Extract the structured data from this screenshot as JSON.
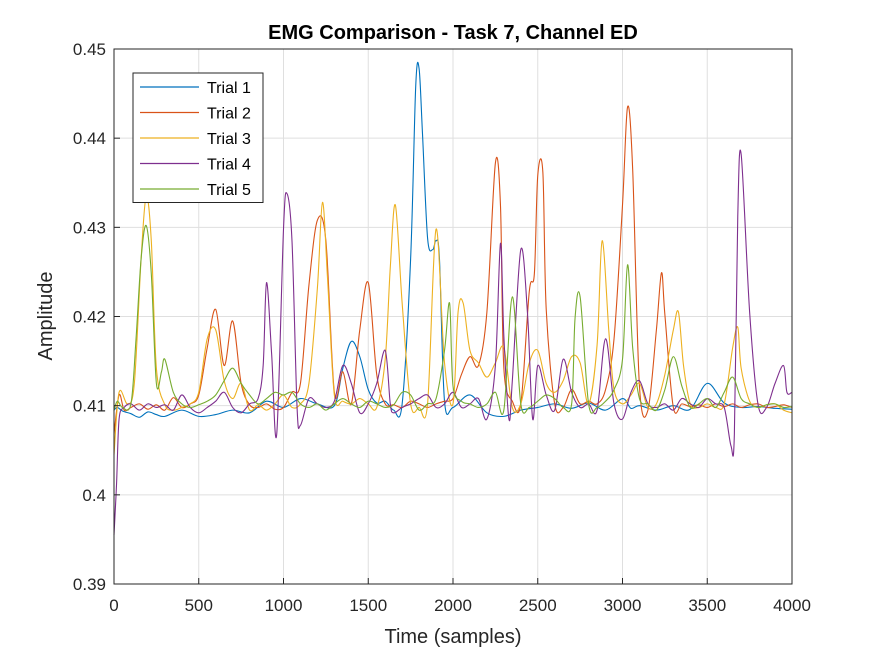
{
  "chart_data": {
    "type": "line",
    "title": "EMG Comparison - Task 7, Channel ED",
    "xlabel": "Time (samples)",
    "ylabel": "Amplitude",
    "xlim": [
      0,
      4000
    ],
    "ylim": [
      0.39,
      0.45
    ],
    "xticks": [
      0,
      500,
      1000,
      1500,
      2000,
      2500,
      3000,
      3500,
      4000
    ],
    "xtick_labels": [
      "0",
      "500",
      "1000",
      "1500",
      "2000",
      "2500",
      "3000",
      "3500",
      "4000"
    ],
    "yticks": [
      0.39,
      0.4,
      0.41,
      0.42,
      0.43,
      0.44,
      0.45
    ],
    "ytick_labels": [
      "0.39",
      "0.4",
      "0.41",
      "0.42",
      "0.43",
      "0.44",
      "0.45"
    ],
    "grid": true,
    "legend_position": "top-left",
    "series": [
      {
        "name": "Trial 1",
        "color": "#0072BD",
        "x": [
          0,
          20,
          50,
          100,
          150,
          200,
          250,
          300,
          400,
          500,
          600,
          700,
          800,
          900,
          1000,
          1100,
          1200,
          1300,
          1350,
          1400,
          1450,
          1500,
          1550,
          1600,
          1650,
          1700,
          1750,
          1780,
          1800,
          1820,
          1850,
          1880,
          1900,
          1920,
          1950,
          2000,
          2100,
          2200,
          2300,
          2400,
          2500,
          2600,
          2700,
          2800,
          2900,
          3000,
          3050,
          3100,
          3200,
          3300,
          3400,
          3500,
          3600,
          3700,
          3800,
          3900,
          4000
        ],
        "y": [
          0.4095,
          0.4098,
          0.4094,
          0.4091,
          0.4087,
          0.4093,
          0.409,
          0.4088,
          0.4095,
          0.4088,
          0.409,
          0.4095,
          0.4092,
          0.4105,
          0.4098,
          0.4108,
          0.4102,
          0.41,
          0.4142,
          0.4172,
          0.4155,
          0.4118,
          0.4103,
          0.4105,
          0.4095,
          0.4102,
          0.4265,
          0.4458,
          0.4478,
          0.4405,
          0.4288,
          0.4275,
          0.4285,
          0.4265,
          0.4105,
          0.4098,
          0.4112,
          0.4092,
          0.4088,
          0.4095,
          0.4098,
          0.4102,
          0.4097,
          0.4103,
          0.4095,
          0.4108,
          0.4097,
          0.41,
          0.4095,
          0.41,
          0.4096,
          0.4125,
          0.4103,
          0.4098,
          0.4099,
          0.4097,
          0.4096
        ]
      },
      {
        "name": "Trial 2",
        "color": "#D95319",
        "x": [
          0,
          30,
          60,
          100,
          150,
          200,
          250,
          300,
          350,
          400,
          450,
          500,
          550,
          600,
          650,
          700,
          750,
          800,
          850,
          900,
          950,
          1000,
          1050,
          1100,
          1150,
          1200,
          1250,
          1300,
          1350,
          1400,
          1450,
          1500,
          1550,
          1600,
          1650,
          1700,
          1750,
          1800,
          1850,
          1900,
          1950,
          2000,
          2050,
          2100,
          2150,
          2200,
          2250,
          2280,
          2300,
          2350,
          2400,
          2450,
          2480,
          2500,
          2530,
          2550,
          2600,
          2650,
          2700,
          2750,
          2800,
          2850,
          2900,
          2950,
          3000,
          3030,
          3060,
          3100,
          3150,
          3200,
          3230,
          3250,
          3300,
          3350,
          3400,
          3450,
          3500,
          3550,
          3600,
          3650,
          3700,
          3750,
          3800,
          3850,
          3900,
          3950,
          4000
        ],
        "y": [
          0.4068,
          0.4112,
          0.4095,
          0.4098,
          0.4102,
          0.4096,
          0.4101,
          0.4095,
          0.4109,
          0.4098,
          0.4102,
          0.4112,
          0.4165,
          0.4208,
          0.4145,
          0.4195,
          0.4125,
          0.4101,
          0.4098,
          0.4102,
          0.4096,
          0.4098,
          0.4115,
          0.4125,
          0.4235,
          0.4308,
          0.4285,
          0.4115,
          0.4138,
          0.4102,
          0.4185,
          0.4238,
          0.4135,
          0.4102,
          0.4101,
          0.4098,
          0.4105,
          0.4102,
          0.4098,
          0.4102,
          0.4105,
          0.4108,
          0.4135,
          0.4155,
          0.4145,
          0.4205,
          0.4372,
          0.4325,
          0.4142,
          0.4105,
          0.4102,
          0.4228,
          0.4248,
          0.4358,
          0.4362,
          0.4208,
          0.4102,
          0.4098,
          0.4118,
          0.4102,
          0.4105,
          0.4102,
          0.4118,
          0.4175,
          0.4325,
          0.4435,
          0.4365,
          0.4122,
          0.4095,
          0.4185,
          0.4249,
          0.4202,
          0.4098,
          0.4102,
          0.4099,
          0.4101,
          0.4098,
          0.4102,
          0.4099,
          0.4102,
          0.4098,
          0.4101,
          0.4102,
          0.4098,
          0.4099,
          0.4101,
          0.4098
        ]
      },
      {
        "name": "Trial 3",
        "color": "#EDB120",
        "x": [
          0,
          30,
          80,
          120,
          160,
          190,
          220,
          250,
          300,
          350,
          400,
          450,
          500,
          550,
          600,
          650,
          700,
          750,
          800,
          850,
          900,
          950,
          1000,
          1050,
          1100,
          1150,
          1200,
          1230,
          1260,
          1300,
          1350,
          1400,
          1450,
          1500,
          1550,
          1600,
          1630,
          1660,
          1700,
          1750,
          1800,
          1850,
          1900,
          1950,
          2000,
          2030,
          2060,
          2100,
          2150,
          2200,
          2250,
          2300,
          2350,
          2400,
          2450,
          2500,
          2550,
          2600,
          2650,
          2700,
          2750,
          2800,
          2850,
          2880,
          2920,
          2950,
          3000,
          3050,
          3100,
          3150,
          3200,
          3250,
          3300,
          3330,
          3360,
          3400,
          3450,
          3500,
          3550,
          3600,
          3650,
          3680,
          3700,
          3750,
          3800,
          3850,
          3900,
          3950,
          4000
        ],
        "y": [
          0.4045,
          0.4115,
          0.4102,
          0.4125,
          0.4265,
          0.4335,
          0.4285,
          0.4142,
          0.4101,
          0.4095,
          0.4098,
          0.4102,
          0.4115,
          0.4175,
          0.4185,
          0.4128,
          0.4108,
          0.4125,
          0.4095,
          0.4101,
          0.4095,
          0.4102,
          0.4112,
          0.4098,
          0.4102,
          0.4125,
          0.4232,
          0.4328,
          0.4242,
          0.4112,
          0.4105,
          0.4102,
          0.4108,
          0.4102,
          0.4098,
          0.4152,
          0.4255,
          0.4325,
          0.4215,
          0.4102,
          0.4098,
          0.4102,
          0.4298,
          0.4148,
          0.4102,
          0.4205,
          0.4215,
          0.4162,
          0.4148,
          0.4132,
          0.4148,
          0.4165,
          0.4098,
          0.4102,
          0.4148,
          0.4162,
          0.4125,
          0.4115,
          0.4128,
          0.4155,
          0.4148,
          0.4102,
          0.4168,
          0.4285,
          0.4182,
          0.4118,
          0.4102,
          0.4112,
          0.4125,
          0.4098,
          0.4102,
          0.4135,
          0.4185,
          0.4205,
          0.4145,
          0.4102,
          0.4098,
          0.4102,
          0.4098,
          0.4102,
          0.4165,
          0.4188,
          0.4142,
          0.4105,
          0.4098,
          0.4101,
          0.4102,
          0.4095,
          0.4092
        ]
      },
      {
        "name": "Trial 4",
        "color": "#7E2F8E",
        "x": [
          0,
          15,
          30,
          60,
          100,
          150,
          200,
          250,
          300,
          350,
          400,
          450,
          500,
          550,
          600,
          650,
          700,
          750,
          800,
          850,
          880,
          900,
          930,
          960,
          1000,
          1020,
          1050,
          1080,
          1100,
          1150,
          1200,
          1250,
          1300,
          1350,
          1400,
          1450,
          1500,
          1550,
          1600,
          1630,
          1650,
          1700,
          1750,
          1800,
          1850,
          1900,
          1950,
          2000,
          2050,
          2100,
          2150,
          2200,
          2250,
          2280,
          2300,
          2330,
          2350,
          2400,
          2440,
          2470,
          2500,
          2550,
          2600,
          2650,
          2700,
          2750,
          2800,
          2850,
          2900,
          2950,
          3000,
          3050,
          3100,
          3150,
          3200,
          3250,
          3300,
          3350,
          3400,
          3450,
          3500,
          3550,
          3600,
          3640,
          3660,
          3680,
          3700,
          3750,
          3800,
          3850,
          3900,
          3950,
          3970,
          4000
        ],
        "y": [
          0.3955,
          0.4012,
          0.4085,
          0.4098,
          0.4102,
          0.4095,
          0.4102,
          0.4098,
          0.4101,
          0.4095,
          0.4112,
          0.4098,
          0.4092,
          0.4098,
          0.4105,
          0.4115,
          0.4098,
          0.4092,
          0.4102,
          0.4108,
          0.4145,
          0.4238,
          0.4158,
          0.4068,
          0.4298,
          0.4338,
          0.4285,
          0.4098,
          0.4078,
          0.4108,
          0.4102,
          0.4098,
          0.4105,
          0.4145,
          0.4125,
          0.4092,
          0.4102,
          0.4125,
          0.4162,
          0.4102,
          0.4092,
          0.4098,
          0.4102,
          0.4108,
          0.4112,
          0.4098,
          0.4102,
          0.4115,
          0.4098,
          0.4102,
          0.4108,
          0.4085,
          0.4145,
          0.4282,
          0.4178,
          0.4085,
          0.4128,
          0.4275,
          0.4202,
          0.4085,
          0.4145,
          0.4112,
          0.4095,
          0.4152,
          0.4115,
          0.4098,
          0.4102,
          0.4095,
          0.4175,
          0.4102,
          0.4085,
          0.4115,
          0.4128,
          0.4102,
          0.4098,
          0.4102,
          0.4095,
          0.4108,
          0.4102,
          0.4098,
          0.4108,
          0.4102,
          0.4098,
          0.4055,
          0.4068,
          0.4312,
          0.4382,
          0.4205,
          0.4101,
          0.4098,
          0.4125,
          0.4145,
          0.4115,
          0.4115
        ]
      },
      {
        "name": "Trial 5",
        "color": "#77AC30",
        "x": [
          0,
          20,
          50,
          100,
          130,
          160,
          190,
          220,
          250,
          280,
          300,
          350,
          400,
          450,
          500,
          550,
          600,
          650,
          700,
          750,
          800,
          850,
          900,
          950,
          1000,
          1050,
          1100,
          1150,
          1200,
          1250,
          1300,
          1350,
          1400,
          1450,
          1500,
          1550,
          1600,
          1650,
          1700,
          1750,
          1800,
          1850,
          1900,
          1950,
          1980,
          2000,
          2050,
          2100,
          2150,
          2200,
          2250,
          2300,
          2350,
          2400,
          2450,
          2500,
          2550,
          2600,
          2650,
          2700,
          2720,
          2750,
          2800,
          2850,
          2900,
          2950,
          3000,
          3030,
          3060,
          3100,
          3150,
          3200,
          3250,
          3300,
          3350,
          3400,
          3450,
          3500,
          3550,
          3600,
          3650,
          3700,
          3750,
          3800,
          3850,
          3900,
          3950,
          4000
        ],
        "y": [
          0.4095,
          0.4105,
          0.4098,
          0.4102,
          0.4175,
          0.4265,
          0.4302,
          0.4248,
          0.4125,
          0.4138,
          0.4152,
          0.4115,
          0.4102,
          0.4098,
          0.4101,
          0.4105,
          0.4112,
          0.4128,
          0.4142,
          0.4125,
          0.4112,
          0.4102,
          0.4108,
          0.4115,
          0.4112,
          0.4115,
          0.4102,
          0.4098,
          0.4102,
          0.4095,
          0.4102,
          0.4108,
          0.4102,
          0.4098,
          0.4105,
          0.4102,
          0.4098,
          0.4101,
          0.4115,
          0.4112,
          0.4095,
          0.4102,
          0.4108,
          0.4162,
          0.4215,
          0.4122,
          0.4105,
          0.4102,
          0.4098,
          0.4102,
          0.4115,
          0.4095,
          0.4222,
          0.4102,
          0.4098,
          0.4105,
          0.4112,
          0.4108,
          0.4098,
          0.4102,
          0.4198,
          0.4222,
          0.4102,
          0.4098,
          0.4105,
          0.4118,
          0.4152,
          0.4258,
          0.4165,
          0.4108,
          0.4102,
          0.4095,
          0.4118,
          0.4155,
          0.4122,
          0.4098,
          0.4102,
          0.4108,
          0.4098,
          0.4115,
          0.4132,
          0.4108,
          0.4102,
          0.4098,
          0.4101,
          0.4102,
          0.4098,
          0.4099
        ]
      }
    ]
  }
}
